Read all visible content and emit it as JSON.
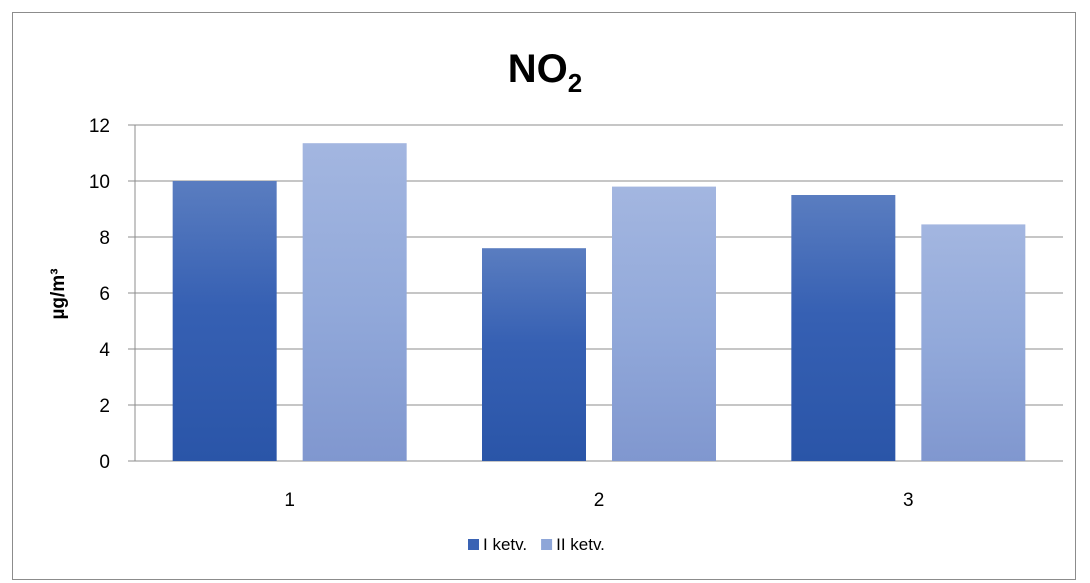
{
  "chart_data": {
    "type": "bar",
    "title": "NO",
    "title_subscript": "2",
    "ylabel": "µg/m³",
    "xlabel": "",
    "categories": [
      "1",
      "2",
      "3"
    ],
    "ylim": [
      0,
      12
    ],
    "yticks": [
      "0",
      "2",
      "4",
      "6",
      "8",
      "10",
      "12"
    ],
    "grid": true,
    "legend_position": "bottom",
    "series": [
      {
        "name": "I ketv.",
        "values": [
          10.0,
          7.6,
          9.5
        ],
        "color": "#3a63b4"
      },
      {
        "name": "II ketv.",
        "values": [
          11.35,
          9.8,
          8.45
        ],
        "color": "#8ea6d8"
      }
    ]
  }
}
